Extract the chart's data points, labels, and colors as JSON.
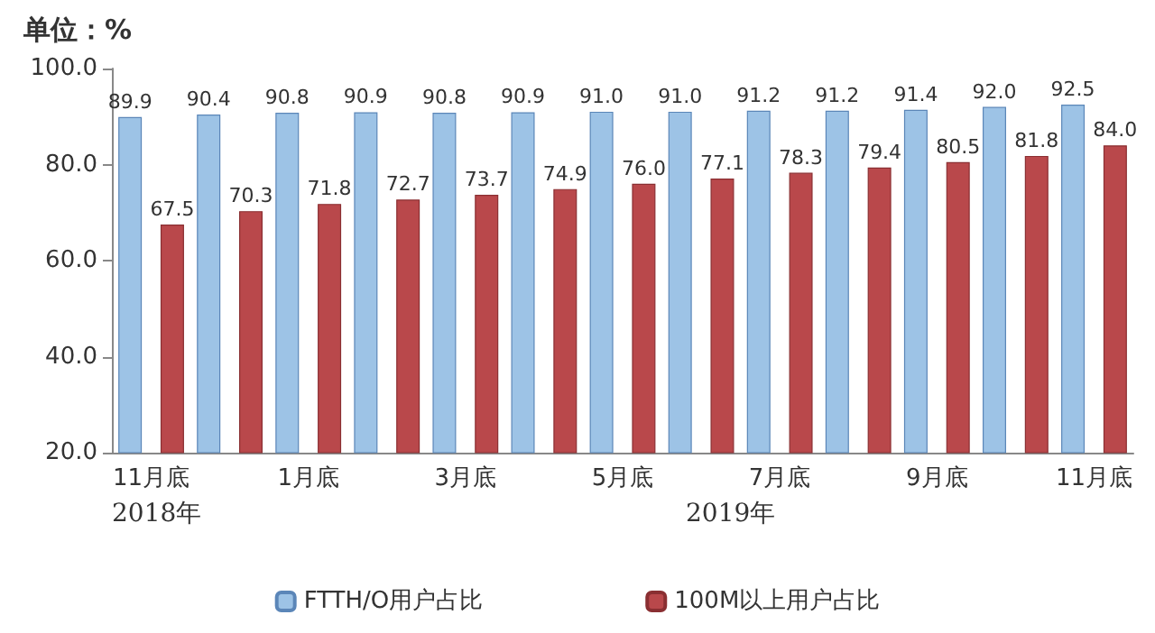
{
  "chart_data": {
    "type": "bar",
    "title": "单位：%",
    "categories": [
      "11月底",
      null,
      "1月底",
      null,
      "3月底",
      null,
      "5月底",
      null,
      "7月底",
      null,
      "9月底",
      null,
      "11月底"
    ],
    "series": [
      {
        "name": "FTTH/O用户占比",
        "color": "#9dc3e6",
        "values": [
          89.9,
          90.4,
          90.8,
          90.9,
          90.8,
          90.9,
          91.0,
          91.0,
          91.2,
          91.2,
          91.4,
          92.0,
          92.5
        ],
        "value_labels": [
          "89.9",
          "90.4",
          "90.8",
          "90.9",
          "90.8",
          "90.9",
          "91.0",
          "91.0",
          "91.2",
          "91.2",
          "91.4",
          "92.0",
          "92.5"
        ]
      },
      {
        "name": "100M以上用户占比",
        "color": "#b9484b",
        "values": [
          67.5,
          70.3,
          71.8,
          72.7,
          73.7,
          74.9,
          76.0,
          77.1,
          78.3,
          79.4,
          80.5,
          81.8,
          84.0
        ],
        "value_labels": [
          "67.5",
          "70.3",
          "71.8",
          "72.7",
          "73.7",
          "74.9",
          "76.0",
          "77.1",
          "78.3",
          "79.4",
          "80.5",
          "81.8",
          "84.0"
        ]
      }
    ],
    "ylim": [
      20,
      100
    ],
    "yticks": [
      {
        "value": 20,
        "label": "20.0"
      },
      {
        "value": 40,
        "label": "40.0"
      },
      {
        "value": 60,
        "label": "60.0"
      },
      {
        "value": 80,
        "label": "80.0"
      },
      {
        "value": 100,
        "label": "100.0"
      }
    ],
    "annotations": [
      "2018年",
      "2019年"
    ],
    "grid": false,
    "legend": "bottom"
  }
}
